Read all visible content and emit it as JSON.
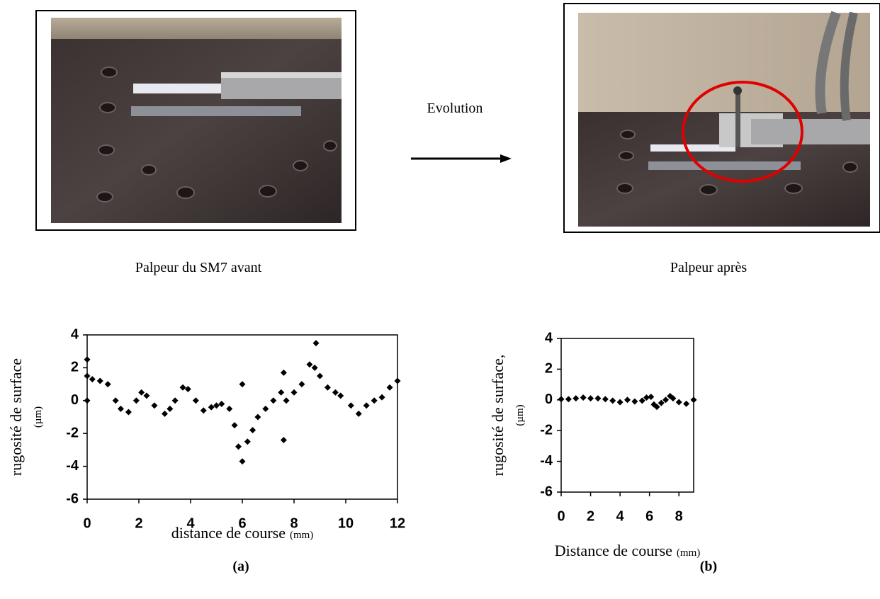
{
  "evolution": "Evolution",
  "photo_captions": [
    "Palpeur du SM7 avant",
    "Palpeur après"
  ],
  "chart_data": [
    {
      "type": "scatter",
      "panel": "(a)",
      "ylabel": "rugosité de surface",
      "ylabel_unit": "(µm)",
      "xlabel": "distance de course",
      "xlabel_unit": "(mm)",
      "color": "#000000",
      "x": [
        0,
        0.2,
        0.5,
        0.8,
        1.1,
        1.3,
        1.6,
        1.9,
        2.1,
        2.3,
        2.6,
        3.0,
        3.2,
        3.4,
        3.7,
        3.9,
        4.2,
        4.5,
        4.8,
        5.0,
        5.2,
        5.5,
        5.7,
        5.85,
        6.0,
        6.2,
        6.4,
        6.6,
        6.9,
        7.2,
        7.5,
        7.7,
        8.0,
        8.3,
        8.6,
        8.8,
        9.0,
        9.3,
        9.6,
        9.8,
        10.2,
        10.5,
        10.8,
        11.1,
        11.4,
        11.7,
        12.0,
        0,
        0,
        6.0,
        7.6,
        7.6,
        8.85
      ],
      "y": [
        1.5,
        1.3,
        1.2,
        1.0,
        0,
        -0.5,
        -0.7,
        0,
        0.5,
        0.3,
        -0.3,
        -0.8,
        -0.5,
        0,
        0.8,
        0.7,
        0,
        -0.6,
        -0.4,
        -0.3,
        -0.2,
        -0.5,
        -1.5,
        -2.8,
        -3.7,
        -2.5,
        -1.8,
        -1.0,
        -0.5,
        0,
        0.5,
        0,
        0.5,
        1.0,
        2.2,
        2.0,
        1.5,
        0.8,
        0.5,
        0.3,
        -0.3,
        -0.8,
        -0.3,
        0,
        0.2,
        0.8,
        1.2,
        2.5,
        0,
        1.0,
        1.7,
        -2.4,
        3.5
      ],
      "xlim": [
        0,
        12
      ],
      "xticks": [
        0,
        2,
        4,
        6,
        8,
        10,
        12
      ],
      "ylim": [
        -6,
        4
      ],
      "yticks": [
        4,
        2,
        0,
        -2,
        -4,
        -6
      ]
    },
    {
      "type": "scatter",
      "panel": "(b)",
      "ylabel": "rugosité de surface,",
      "ylabel_unit": "(µm)",
      "xlabel": "Distance de course",
      "xlabel_unit": "(mm)",
      "color": "#000000",
      "x": [
        0,
        0.5,
        1,
        1.5,
        2,
        2.5,
        3,
        3.5,
        4,
        4.5,
        5,
        5.5,
        5.8,
        6.1,
        6.3,
        6.5,
        6.8,
        7.1,
        7.4,
        7.6,
        8,
        8.5,
        9
      ],
      "y": [
        0.05,
        0.05,
        0.1,
        0.15,
        0.1,
        0.1,
        0.05,
        -0.05,
        -0.15,
        0,
        -0.1,
        -0.05,
        0.15,
        0.2,
        -0.3,
        -0.45,
        -0.2,
        0,
        0.25,
        0.1,
        -0.15,
        -0.25,
        0
      ],
      "xlim": [
        0,
        9
      ],
      "xticks": [
        0,
        2,
        4,
        6,
        8
      ],
      "ylim": [
        -6,
        4
      ],
      "yticks": [
        4,
        2,
        0,
        -2,
        -4,
        -6
      ]
    }
  ]
}
